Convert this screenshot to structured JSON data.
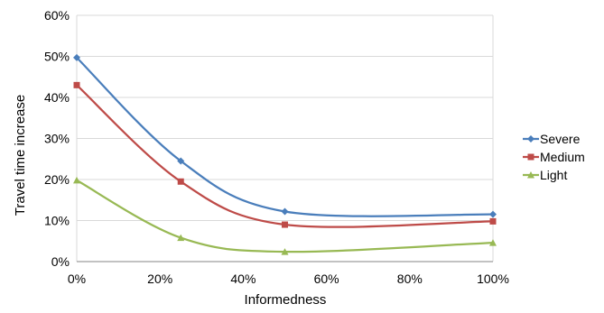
{
  "chart_data": {
    "type": "line",
    "title": "",
    "xlabel": "Informedness",
    "ylabel": "Travel time increase",
    "x": [
      0,
      25,
      50,
      100
    ],
    "xlim": [
      0,
      100
    ],
    "ylim": [
      0,
      60
    ],
    "x_ticks": [
      "0%",
      "20%",
      "40%",
      "60%",
      "80%",
      "100%"
    ],
    "y_ticks": [
      "0%",
      "10%",
      "20%",
      "30%",
      "40%",
      "50%",
      "60%"
    ],
    "grid": "horizontal",
    "legend_position": "right",
    "smooth": true,
    "series": [
      {
        "name": "Severe",
        "values": [
          49.7,
          24.5,
          12.2,
          11.5
        ],
        "color": "#4a7ebb",
        "marker": "diamond"
      },
      {
        "name": "Medium",
        "values": [
          43.0,
          19.5,
          9.0,
          9.8
        ],
        "color": "#be4b48",
        "marker": "square"
      },
      {
        "name": "Light",
        "values": [
          19.8,
          5.8,
          2.4,
          4.6
        ],
        "color": "#98b954",
        "marker": "triangle"
      }
    ]
  }
}
